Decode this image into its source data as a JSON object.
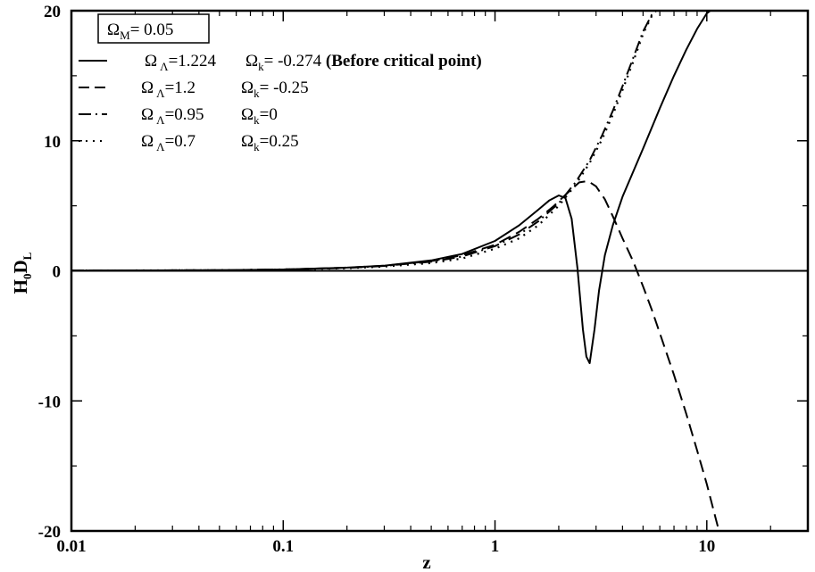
{
  "chart_data": {
    "type": "line",
    "xscale": "log",
    "xlim": [
      0.01,
      30
    ],
    "ylim": [
      -20,
      20
    ],
    "xlabel": "z",
    "ylabel": {
      "main": "H",
      "sub1": "0",
      "main2": "D",
      "sub2": "L"
    },
    "xticks": [
      {
        "value": 0.01,
        "label": "0.01"
      },
      {
        "value": 0.1,
        "label": "0.1"
      },
      {
        "value": 1,
        "label": "1"
      },
      {
        "value": 10,
        "label": "10"
      }
    ],
    "yticks": [
      {
        "value": -20,
        "label": "-20"
      },
      {
        "value": -10,
        "label": "-10"
      },
      {
        "value": 0,
        "label": "0"
      },
      {
        "value": 10,
        "label": "10"
      },
      {
        "value": 20,
        "label": "20"
      }
    ],
    "grid": false,
    "zero_line": true,
    "annotation": {
      "symbol": "Ω",
      "sub": "M",
      "text": "= 0.05"
    },
    "series": [
      {
        "style": "solid",
        "legend": {
          "lambda_value": "=1.224",
          "k_value": "= -0.274",
          "note": "(Before critical point)"
        },
        "x": [
          0.01,
          0.05,
          0.1,
          0.2,
          0.3,
          0.5,
          0.7,
          1.0,
          1.3,
          1.6,
          1.8,
          2.0,
          2.15,
          2.3,
          2.45,
          2.6,
          2.7,
          2.8,
          2.95,
          3.1,
          3.3,
          3.6,
          4.0,
          5.0,
          6.0,
          7.0,
          8.0,
          9.0,
          10.0,
          10.8
        ],
        "y": [
          0.02,
          0.05,
          0.1,
          0.25,
          0.4,
          0.8,
          1.3,
          2.3,
          3.5,
          4.7,
          5.4,
          5.8,
          5.6,
          4.0,
          0.2,
          -4.5,
          -6.6,
          -7.1,
          -4.5,
          -1.5,
          1.2,
          3.5,
          5.7,
          9.4,
          12.5,
          15.0,
          17.0,
          18.6,
          19.8,
          20.2
        ]
      },
      {
        "style": "dashed",
        "legend": {
          "lambda_value": "=1.2",
          "k_value": "= -0.25",
          "note": ""
        },
        "x": [
          0.01,
          0.05,
          0.1,
          0.2,
          0.3,
          0.5,
          0.7,
          1.0,
          1.3,
          1.6,
          1.9,
          2.2,
          2.5,
          2.75,
          3.0,
          3.3,
          3.6,
          4.0,
          4.5,
          5.0,
          5.5,
          6.0,
          7.0,
          8.0,
          9.0,
          10.0,
          11.0,
          11.5
        ],
        "y": [
          0.02,
          0.05,
          0.1,
          0.25,
          0.4,
          0.75,
          1.2,
          2.0,
          3.0,
          4.0,
          5.0,
          6.0,
          6.8,
          6.9,
          6.5,
          5.5,
          4.2,
          2.5,
          0.7,
          -1.2,
          -3.0,
          -4.8,
          -8.0,
          -11.0,
          -13.8,
          -16.4,
          -19.0,
          -20.2
        ]
      },
      {
        "style": "dashdot",
        "legend": {
          "lambda_value": "=0.95",
          "k_value": "=0",
          "note": ""
        },
        "x": [
          0.01,
          0.05,
          0.1,
          0.2,
          0.3,
          0.5,
          0.7,
          1.0,
          1.3,
          1.6,
          2.0,
          2.4,
          2.8,
          3.2,
          3.6,
          4.0,
          4.5,
          5.0,
          5.5,
          5.9
        ],
        "y": [
          0.02,
          0.05,
          0.1,
          0.22,
          0.38,
          0.7,
          1.1,
          1.9,
          2.8,
          3.8,
          5.2,
          6.8,
          8.5,
          10.4,
          12.3,
          14.2,
          16.4,
          18.4,
          19.7,
          20.2
        ]
      },
      {
        "style": "dotted",
        "legend": {
          "lambda_value": "=0.7",
          "k_value": "=0.25",
          "note": ""
        },
        "x": [
          0.01,
          0.05,
          0.1,
          0.2,
          0.3,
          0.5,
          0.7,
          1.0,
          1.3,
          1.6,
          2.0,
          2.4,
          2.8,
          3.2,
          3.6,
          4.0,
          4.5,
          5.0,
          5.5,
          5.9
        ],
        "y": [
          0.02,
          0.05,
          0.1,
          0.2,
          0.33,
          0.6,
          0.95,
          1.7,
          2.5,
          3.5,
          5.0,
          6.6,
          8.3,
          10.1,
          12.0,
          13.9,
          16.1,
          18.2,
          19.6,
          20.2
        ]
      }
    ]
  }
}
